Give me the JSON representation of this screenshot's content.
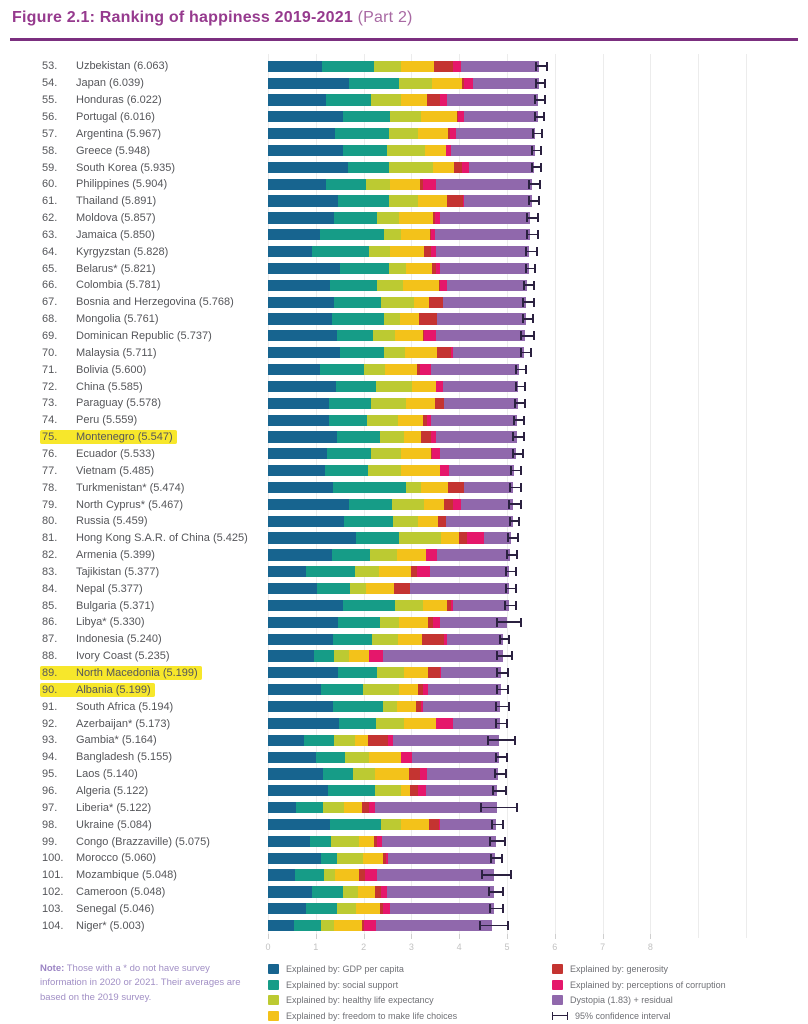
{
  "header": {
    "title": "Figure 2.1: Ranking of happiness 2019-2021",
    "title_suffix": "(Part 2)"
  },
  "note": {
    "label": "Note:",
    "text": "Those with a * do not have survey information in 2020 or 2021. Their averages are based on the 2019 survey."
  },
  "colors": {
    "title": "#963a8e",
    "rule": "#7b2f7f",
    "label_text": "#55565a",
    "axis_text": "#c2c2c2",
    "gridline": "#ececec",
    "error_bar": "#2b2140",
    "note_text": "#a18fc5",
    "legend_text": "#707176",
    "highlight": "#f7e72b"
  },
  "chart_data": {
    "type": "bar",
    "orientation": "horizontal",
    "stacked": true,
    "title": "Figure 2.1: Ranking of happiness 2019-2021 (Part 2)",
    "xlabel": "",
    "ylabel": "",
    "x_ticks": [
      0,
      1,
      2,
      3,
      4,
      5,
      6,
      7,
      8
    ],
    "xlim": [
      0,
      10
    ],
    "grid": true,
    "legend_position": "bottom",
    "components": [
      {
        "key": "gdp-per-capita",
        "label": "Explained by: GDP per capita",
        "color": "#17648f"
      },
      {
        "key": "social-support",
        "label": "Explained by: social support",
        "color": "#169c87"
      },
      {
        "key": "healthy-life-expectancy",
        "label": "Explained by: healthy life expectancy",
        "color": "#bcca32"
      },
      {
        "key": "freedom-to-make-life-choices",
        "label": "Explained by: freedom to make life choices",
        "color": "#f3c21a"
      },
      {
        "key": "generosity",
        "label": "Explained by: generosity",
        "color": "#c43431"
      },
      {
        "key": "perceptions-of-corruption",
        "label": "Explained by: perceptions of corruption",
        "color": "#e5176b"
      },
      {
        "key": "dystopia-residual",
        "label": "Dystopia (1.83) + residual",
        "color": "#9068ac"
      }
    ],
    "ci_legend_label": "95% confidence interval",
    "rows": [
      {
        "rank": 53,
        "country": "Uzbekistan",
        "score": "6.063",
        "values": [
          1.2,
          1.16,
          0.6,
          0.75,
          0.41,
          0.19,
          1.75
        ],
        "ci": 0.1,
        "highlighted": false
      },
      {
        "rank": 54,
        "country": "Japan",
        "score": "6.039",
        "values": [
          1.81,
          1.11,
          0.74,
          0.66,
          0.06,
          0.2,
          1.46
        ],
        "ci": 0.07,
        "highlighted": false
      },
      {
        "rank": 55,
        "country": "Honduras",
        "score": "6.022",
        "values": [
          1.29,
          1.0,
          0.67,
          0.59,
          0.29,
          0.15,
          2.03
        ],
        "ci": 0.09,
        "highlighted": false
      },
      {
        "rank": 56,
        "country": "Portugal",
        "score": "6.016",
        "values": [
          1.68,
          1.05,
          0.69,
          0.8,
          0.03,
          0.12,
          1.65
        ],
        "ci": 0.08,
        "highlighted": false
      },
      {
        "rank": 57,
        "country": "Argentina",
        "score": "5.967",
        "values": [
          1.49,
          1.2,
          0.66,
          0.66,
          0.05,
          0.13,
          1.78
        ],
        "ci": 0.08,
        "highlighted": false
      },
      {
        "rank": 58,
        "country": "Greece",
        "score": "5.948",
        "values": [
          1.68,
          0.98,
          0.84,
          0.47,
          0.0,
          0.11,
          1.87
        ],
        "ci": 0.08,
        "highlighted": false
      },
      {
        "rank": 59,
        "country": "South Korea",
        "score": "5.935",
        "values": [
          1.79,
          0.92,
          0.97,
          0.48,
          0.18,
          0.15,
          1.45
        ],
        "ci": 0.08,
        "highlighted": false
      },
      {
        "rank": 60,
        "country": "Philippines",
        "score": "5.904",
        "values": [
          1.29,
          0.89,
          0.54,
          0.68,
          0.07,
          0.29,
          2.14
        ],
        "ci": 0.1,
        "highlighted": false
      },
      {
        "rank": 61,
        "country": "Thailand",
        "score": "5.891",
        "values": [
          1.57,
          1.14,
          0.64,
          0.64,
          0.36,
          0.03,
          1.51
        ],
        "ci": 0.09,
        "highlighted": false
      },
      {
        "rank": 62,
        "country": "Moldova",
        "score": "5.857",
        "values": [
          1.47,
          0.96,
          0.5,
          0.75,
          0.05,
          0.11,
          2.02
        ],
        "ci": 0.09,
        "highlighted": false
      },
      {
        "rank": 63,
        "country": "Jamaica",
        "score": "5.850",
        "values": [
          1.15,
          1.43,
          0.39,
          0.64,
          0.02,
          0.09,
          2.13
        ],
        "ci": 0.1,
        "highlighted": false
      },
      {
        "rank": 64,
        "country": "Kyrgyzstan",
        "score": "5.828",
        "values": [
          0.99,
          1.27,
          0.47,
          0.76,
          0.15,
          0.11,
          2.08
        ],
        "ci": 0.1,
        "highlighted": false
      },
      {
        "rank": 65,
        "country": "Belarus*",
        "score": "5.821",
        "values": [
          1.6,
          1.09,
          0.4,
          0.58,
          0.08,
          0.1,
          1.97
        ],
        "ci": 0.08,
        "highlighted": false
      },
      {
        "rank": 66,
        "country": "Colombia",
        "score": "5.781",
        "values": [
          1.39,
          1.05,
          0.58,
          0.8,
          0.03,
          0.15,
          1.78
        ],
        "ci": 0.09,
        "highlighted": false
      },
      {
        "rank": 67,
        "country": "Bosnia and Herzegovina",
        "score": "5.768",
        "values": [
          1.48,
          1.05,
          0.74,
          0.32,
          0.32,
          0.0,
          1.86
        ],
        "ci": 0.1,
        "highlighted": false
      },
      {
        "rank": 68,
        "country": "Mongolia",
        "score": "5.761",
        "values": [
          1.42,
          1.17,
          0.35,
          0.42,
          0.42,
          0.0,
          1.98
        ],
        "ci": 0.09,
        "highlighted": false
      },
      {
        "rank": 69,
        "country": "Dominican Republic",
        "score": "5.737",
        "values": [
          1.54,
          0.81,
          0.49,
          0.63,
          0.02,
          0.25,
          2.0
        ],
        "ci": 0.12,
        "highlighted": false
      },
      {
        "rank": 70,
        "country": "Malaysia",
        "score": "5.711",
        "values": [
          1.6,
          1.0,
          0.45,
          0.73,
          0.31,
          0.04,
          1.58
        ],
        "ci": 0.09,
        "highlighted": false
      },
      {
        "rank": 71,
        "country": "Bolivia",
        "score": "5.600",
        "values": [
          1.15,
          1.0,
          0.46,
          0.71,
          0.07,
          0.25,
          1.96
        ],
        "ci": 0.09,
        "highlighted": false
      },
      {
        "rank": 72,
        "country": "China",
        "score": "5.585",
        "values": [
          1.52,
          0.88,
          0.81,
          0.53,
          0.02,
          0.14,
          1.69
        ],
        "ci": 0.07,
        "highlighted": false
      },
      {
        "rank": 73,
        "country": "Paraguay",
        "score": "5.578",
        "values": [
          1.37,
          0.92,
          0.78,
          0.65,
          0.2,
          0.0,
          1.66
        ],
        "ci": 0.1,
        "highlighted": false
      },
      {
        "rank": 74,
        "country": "Peru",
        "score": "5.559",
        "values": [
          1.37,
          0.84,
          0.7,
          0.56,
          0.07,
          0.1,
          1.92
        ],
        "ci": 0.09,
        "highlighted": false
      },
      {
        "rank": 75,
        "country": "Montenegro",
        "score": "5.547",
        "values": [
          1.55,
          0.95,
          0.53,
          0.39,
          0.21,
          0.11,
          1.81
        ],
        "ci": 0.1,
        "highlighted": true
      },
      {
        "rank": 76,
        "country": "Ecuador",
        "score": "5.533",
        "values": [
          1.31,
          0.98,
          0.67,
          0.67,
          0.02,
          0.18,
          1.7
        ],
        "ci": 0.09,
        "highlighted": false
      },
      {
        "rank": 77,
        "country": "Vietnam",
        "score": "5.485",
        "values": [
          1.28,
          0.96,
          0.74,
          0.85,
          0.02,
          0.18,
          1.46
        ],
        "ci": 0.08,
        "highlighted": false
      },
      {
        "rank": 78,
        "country": "Turkmenistan*",
        "score": "5.474",
        "values": [
          1.45,
          1.62,
          0.35,
          0.6,
          0.35,
          0.0,
          1.1
        ],
        "ci": 0.1,
        "highlighted": false
      },
      {
        "rank": 79,
        "country": "North Cyprus*",
        "score": "5.467",
        "values": [
          1.8,
          0.97,
          0.72,
          0.43,
          0.22,
          0.18,
          1.15
        ],
        "ci": 0.12,
        "highlighted": false
      },
      {
        "rank": 80,
        "country": "Russia",
        "score": "5.459",
        "values": [
          1.69,
          1.09,
          0.56,
          0.46,
          0.18,
          0.0,
          1.48
        ],
        "ci": 0.08,
        "highlighted": false
      },
      {
        "rank": 81,
        "country": "Hong Kong S.A.R. of China",
        "score": "5.425",
        "values": [
          1.97,
          0.95,
          0.95,
          0.39,
          0.18,
          0.38,
          0.61
        ],
        "ci": 0.09,
        "highlighted": false
      },
      {
        "rank": 82,
        "country": "Armenia",
        "score": "5.399",
        "values": [
          1.43,
          0.85,
          0.6,
          0.64,
          0.0,
          0.25,
          1.63
        ],
        "ci": 0.09,
        "highlighted": false
      },
      {
        "rank": 83,
        "country": "Tajikistan",
        "score": "5.377",
        "values": [
          0.85,
          1.09,
          0.53,
          0.73,
          0.12,
          0.3,
          1.76
        ],
        "ci": 0.09,
        "highlighted": false
      },
      {
        "rank": 84,
        "country": "Nepal",
        "score": "5.377",
        "values": [
          1.1,
          0.72,
          0.36,
          0.64,
          0.35,
          0.0,
          2.21
        ],
        "ci": 0.1,
        "highlighted": false
      },
      {
        "rank": 85,
        "country": "Bulgaria",
        "score": "5.371",
        "values": [
          1.67,
          1.16,
          0.64,
          0.53,
          0.09,
          0.05,
          1.23
        ],
        "ci": 0.1,
        "highlighted": false
      },
      {
        "rank": 86,
        "country": "Libya*",
        "score": "5.330",
        "values": [
          1.56,
          0.94,
          0.43,
          0.65,
          0.1,
          0.15,
          1.5
        ],
        "ci": 0.25,
        "highlighted": false
      },
      {
        "rank": 87,
        "country": "Indonesia",
        "score": "5.240",
        "values": [
          1.45,
          0.87,
          0.58,
          0.54,
          0.5,
          0.05,
          1.25
        ],
        "ci": 0.08,
        "highlighted": false
      },
      {
        "rank": 88,
        "country": "Ivory Coast",
        "score": "5.235",
        "values": [
          1.03,
          0.44,
          0.34,
          0.44,
          0.0,
          0.31,
          2.68
        ],
        "ci": 0.14,
        "highlighted": false
      },
      {
        "rank": 89,
        "country": "North Macedonia",
        "score": "5.199",
        "values": [
          1.56,
          0.87,
          0.61,
          0.54,
          0.25,
          0.03,
          1.34
        ],
        "ci": 0.1,
        "highlighted": true
      },
      {
        "rank": 90,
        "country": "Albania",
        "score": "5.199",
        "values": [
          1.19,
          0.94,
          0.79,
          0.43,
          0.11,
          0.11,
          1.63
        ],
        "ci": 0.1,
        "highlighted": true
      },
      {
        "rank": 91,
        "country": "South Africa",
        "score": "5.194",
        "values": [
          1.46,
          1.1,
          0.32,
          0.43,
          0.1,
          0.06,
          1.72
        ],
        "ci": 0.12,
        "highlighted": false
      },
      {
        "rank": 92,
        "country": "Azerbaijan*",
        "score": "5.173",
        "values": [
          1.58,
          0.84,
          0.62,
          0.7,
          0.0,
          0.4,
          1.03
        ],
        "ci": 0.1,
        "highlighted": false
      },
      {
        "rank": 93,
        "country": "Gambia*",
        "score": "5.164",
        "values": [
          0.81,
          0.66,
          0.47,
          0.29,
          0.45,
          0.1,
          2.38
        ],
        "ci": 0.28,
        "highlighted": false
      },
      {
        "rank": 94,
        "country": "Bangladesh",
        "score": "5.155",
        "values": [
          1.08,
          0.64,
          0.54,
          0.71,
          0.0,
          0.25,
          1.94
        ],
        "ci": 0.1,
        "highlighted": false
      },
      {
        "rank": 95,
        "country": "Laos",
        "score": "5.140",
        "values": [
          1.22,
          0.68,
          0.5,
          0.75,
          0.25,
          0.14,
          1.6
        ],
        "ci": 0.1,
        "highlighted": false
      },
      {
        "rank": 96,
        "country": "Algeria",
        "score": "5.122",
        "values": [
          1.35,
          1.03,
          0.6,
          0.18,
          0.18,
          0.18,
          1.6
        ],
        "ci": 0.12,
        "highlighted": false
      },
      {
        "rank": 97,
        "country": "Liberia*",
        "score": "5.122",
        "values": [
          0.62,
          0.61,
          0.47,
          0.4,
          0.15,
          0.14,
          2.73
        ],
        "ci": 0.38,
        "highlighted": false
      },
      {
        "rank": 98,
        "country": "Ukraine",
        "score": "5.084",
        "values": [
          1.39,
          1.14,
          0.43,
          0.64,
          0.21,
          0.02,
          1.25
        ],
        "ci": 0.1,
        "highlighted": false
      },
      {
        "rank": 99,
        "country": "Congo (Brazzaville)",
        "score": "5.075",
        "values": [
          0.93,
          0.47,
          0.64,
          0.32,
          0.08,
          0.1,
          2.54
        ],
        "ci": 0.15,
        "highlighted": false
      },
      {
        "rank": 100,
        "country": "Morocco",
        "score": "5.060",
        "values": [
          1.18,
          0.36,
          0.57,
          0.46,
          0.06,
          0.05,
          2.38
        ],
        "ci": 0.1,
        "highlighted": false
      },
      {
        "rank": 101,
        "country": "Mozambique",
        "score": "5.048",
        "values": [
          0.61,
          0.64,
          0.25,
          0.54,
          0.12,
          0.27,
          2.62
        ],
        "ci": 0.3,
        "highlighted": false
      },
      {
        "rank": 102,
        "country": "Cameroon",
        "score": "5.048",
        "values": [
          0.98,
          0.69,
          0.33,
          0.4,
          0.12,
          0.13,
          2.4
        ],
        "ci": 0.13,
        "highlighted": false
      },
      {
        "rank": 103,
        "country": "Senegal",
        "score": "5.046",
        "values": [
          0.84,
          0.69,
          0.43,
          0.54,
          0.07,
          0.15,
          2.33
        ],
        "ci": 0.12,
        "highlighted": false
      },
      {
        "rank": 104,
        "country": "Niger*",
        "score": "5.003",
        "values": [
          0.59,
          0.59,
          0.29,
          0.62,
          0.05,
          0.28,
          2.58
        ],
        "ci": 0.3,
        "highlighted": false
      }
    ]
  }
}
